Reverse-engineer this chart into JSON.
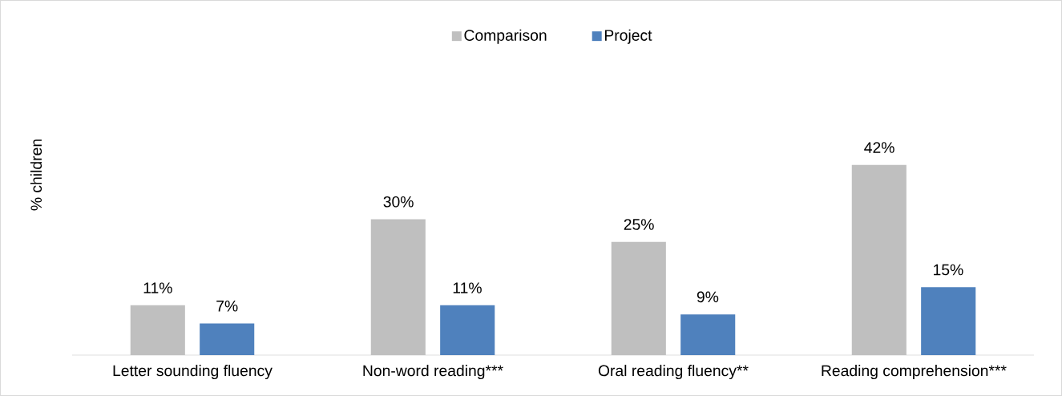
{
  "chart_data": {
    "type": "bar",
    "ylabel": "% children",
    "categories": [
      "Letter sounding fluency",
      "Non-word reading***",
      "Oral reading fluency**",
      "Reading comprehension***"
    ],
    "series": [
      {
        "name": "Comparison",
        "color": "#bfbfbf",
        "values": [
          11,
          30,
          25,
          42
        ],
        "value_labels": [
          "11%",
          "30%",
          "25%",
          "42%"
        ]
      },
      {
        "name": "Project",
        "color": "#4f81bd",
        "values": [
          7,
          11,
          9,
          15
        ],
        "value_labels": [
          "7%",
          "11%",
          "9%",
          "15%"
        ]
      }
    ],
    "legend": "top"
  }
}
